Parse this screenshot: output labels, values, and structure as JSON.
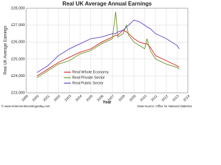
{
  "chart_data": {
    "type": "line",
    "title": "Real UK Average Annual Earnings",
    "ylabel": "Real UK Average Earnings",
    "xlabel": "Year",
    "credit": "© www.retirementinvestingtoday.com",
    "source": "Data Source: Office for National Statistics",
    "x": [
      2000,
      2001,
      2002,
      2003,
      2004,
      2005,
      2006,
      2007,
      2007.3,
      2007.5,
      2008,
      2008.3,
      2008.5,
      2009,
      2009.5,
      2010,
      2010.2,
      2010.5,
      2011,
      2012,
      2013,
      2013.2
    ],
    "series": [
      {
        "name": "Real Whole Economy",
        "color": "#d42020",
        "values": [
          24000,
          24400,
          24800,
          25100,
          25400,
          25600,
          26000,
          26300,
          26400,
          26400,
          26700,
          26600,
          26500,
          26200,
          26000,
          25900,
          25900,
          25700,
          25200,
          24900,
          24600,
          24500
        ]
      },
      {
        "name": "Real Private Sector",
        "color": "#6a8f1e",
        "values": [
          23900,
          24300,
          24700,
          24900,
          25300,
          25500,
          25900,
          26200,
          27800,
          26300,
          26500,
          27000,
          26400,
          26000,
          25800,
          25600,
          26200,
          25500,
          25000,
          24700,
          24500,
          24400
        ]
      },
      {
        "name": "Real Public Sector",
        "color": "#5b3fc8",
        "values": [
          24200,
          24600,
          25200,
          25600,
          25900,
          26200,
          26300,
          26500,
          26500,
          26600,
          26700,
          26900,
          27000,
          27300,
          27200,
          27000,
          26900,
          26800,
          26500,
          26200,
          25800,
          25600
        ]
      }
    ],
    "xlim": [
      1999,
      2014
    ],
    "xticks": [
      1999,
      2000,
      2001,
      2002,
      2003,
      2004,
      2005,
      2006,
      2007,
      2008,
      2009,
      2010,
      2011,
      2012,
      2013,
      2014
    ],
    "ylim": [
      23000,
      28000
    ],
    "yticks": [
      {
        "value": 23000,
        "label": "£23,000"
      },
      {
        "value": 24000,
        "label": "£24,000"
      },
      {
        "value": 25000,
        "label": "£25,000"
      },
      {
        "value": 26000,
        "label": "£26,000"
      },
      {
        "value": 27000,
        "label": "£27,000"
      },
      {
        "value": 28000,
        "label": "£28,000"
      }
    ],
    "grid": true,
    "legend": "lower left"
  }
}
